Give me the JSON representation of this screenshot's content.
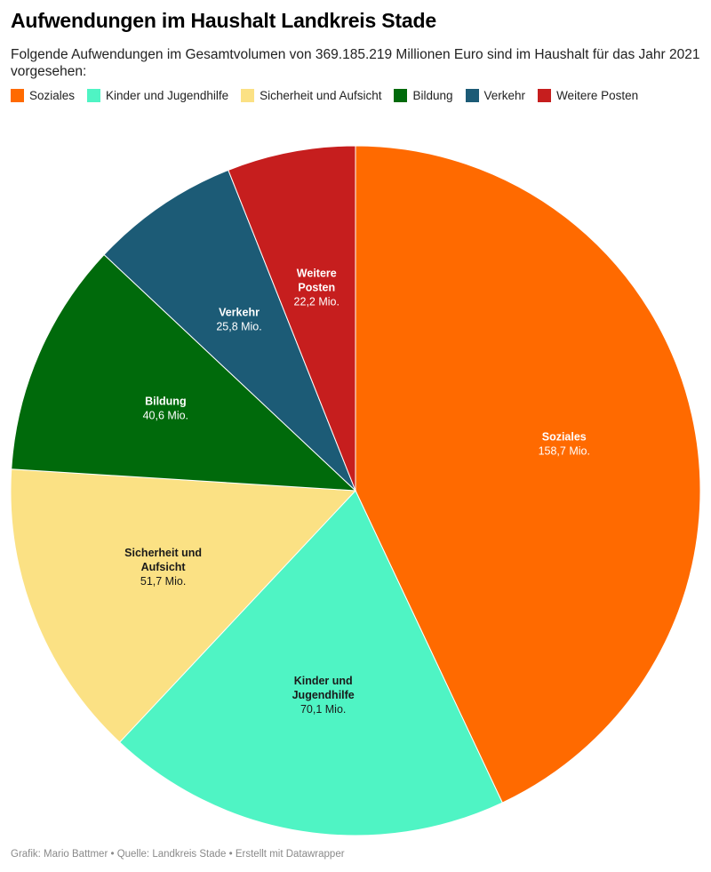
{
  "title": "Aufwendungen im Haushalt Landkreis Stade",
  "subtitle": "Folgende Aufwendungen im Gesamtvolumen von 369.185.219 Millionen Euro sind im Haushalt für das Jahr 2021 vorgesehen:",
  "footer": "Grafik: Mario Battmer • Quelle: Landkreis Stade • Erstellt mit Datawrapper",
  "chart_data": {
    "type": "pie",
    "title": "Aufwendungen im Haushalt Landkreis Stade",
    "unit": "Mio.",
    "start": "12 o'clock, clockwise",
    "legend_position": "top",
    "slices": [
      {
        "name": "Soziales",
        "value": 158.7,
        "value_label": "158,7 Mio.",
        "label_lines": [
          "Soziales"
        ],
        "color": "#ff6a00",
        "text_color": "#ffffff"
      },
      {
        "name": "Kinder und Jugendhilfe",
        "value": 70.1,
        "value_label": "70,1 Mio.",
        "label_lines": [
          "Kinder und",
          "Jugendhilfe"
        ],
        "color": "#4ff4c4",
        "text_color": "#1a1a1a"
      },
      {
        "name": "Sicherheit und Aufsicht",
        "value": 51.7,
        "value_label": "51,7 Mio.",
        "label_lines": [
          "Sicherheit und",
          "Aufsicht"
        ],
        "color": "#fbe184",
        "text_color": "#1a1a1a"
      },
      {
        "name": "Bildung",
        "value": 40.6,
        "value_label": "40,6 Mio.",
        "label_lines": [
          "Bildung"
        ],
        "color": "#006a0b",
        "text_color": "#ffffff"
      },
      {
        "name": "Verkehr",
        "value": 25.8,
        "value_label": "25,8 Mio.",
        "label_lines": [
          "Verkehr"
        ],
        "color": "#1c5b76",
        "text_color": "#ffffff"
      },
      {
        "name": "Weitere Posten",
        "value": 22.2,
        "value_label": "22,2 Mio.",
        "label_lines": [
          "Weitere",
          "Posten"
        ],
        "color": "#c61e1e",
        "text_color": "#ffffff"
      }
    ]
  }
}
